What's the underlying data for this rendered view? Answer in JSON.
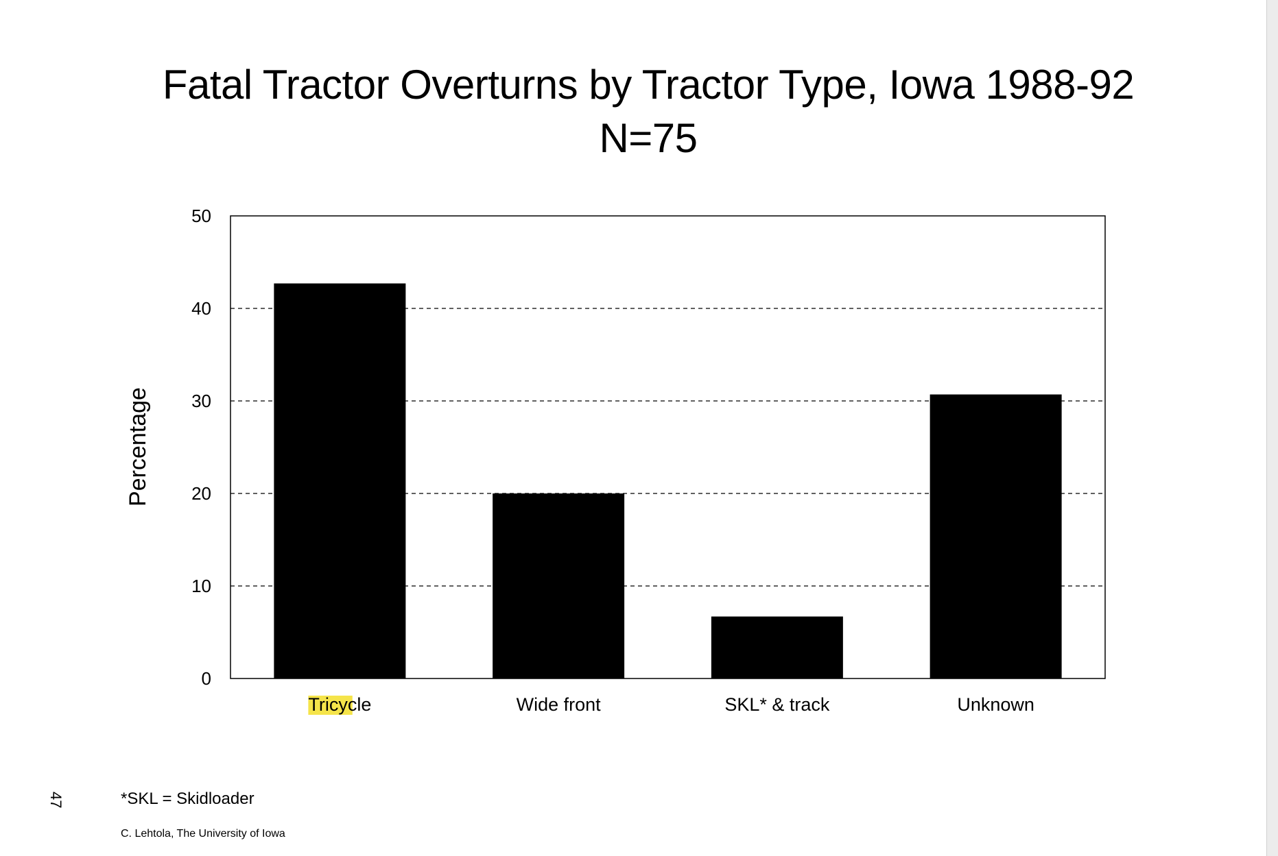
{
  "title_line1": "Fatal Tractor Overturns by Tractor Type, Iowa 1988-92",
  "title_line2": "N=75",
  "footnote": "*SKL = Skidloader",
  "credit": "C. Lehtola, The University of Iowa",
  "page_number": "47",
  "chart_data": {
    "type": "bar",
    "title": "Fatal Tractor Overturns by Tractor Type, Iowa 1988-92",
    "subtitle": "N=75",
    "categories": [
      "Tricycle",
      "Wide front",
      "SKL* & track",
      "Unknown"
    ],
    "values": [
      42.7,
      20,
      6.7,
      30.7
    ],
    "xlabel": "",
    "ylabel": "Percentage",
    "ylim": [
      0,
      50
    ],
    "yticks": [
      0,
      10,
      20,
      30,
      40,
      50
    ],
    "grid": "horizontal dashed",
    "legend": "none",
    "bar_color": "#000000",
    "highlight_color": "#f5e44a"
  }
}
